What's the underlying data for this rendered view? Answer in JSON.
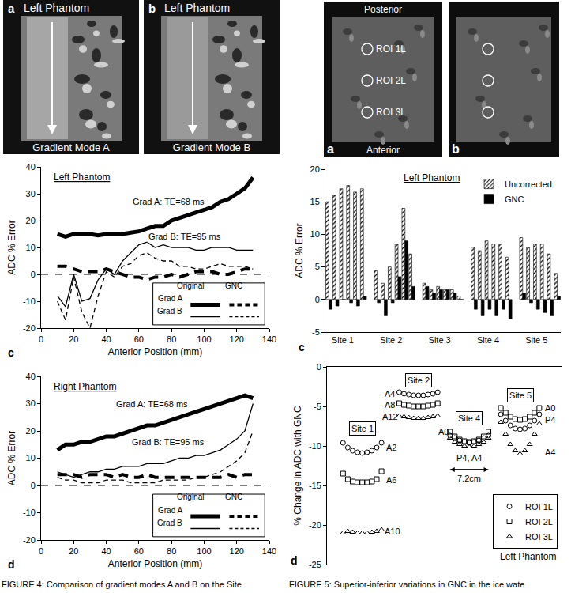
{
  "chart_data": [
    {
      "type": "line",
      "panel": "c",
      "title": "Left Phantom",
      "x_label": "Anterior Position (mm)",
      "y_label": "ADC % Error",
      "x": [
        10,
        15,
        20,
        25,
        30,
        35,
        40,
        45,
        50,
        55,
        60,
        65,
        70,
        75,
        80,
        85,
        90,
        95,
        100,
        105,
        110,
        115,
        120,
        125,
        130
      ],
      "xlim": [
        0,
        140
      ],
      "xticks": [
        0,
        20,
        40,
        60,
        80,
        100,
        120,
        140
      ],
      "ylim": [
        -20,
        40
      ],
      "yticks": [
        -20,
        -10,
        0,
        10,
        20,
        30,
        40
      ],
      "grid": false,
      "reference_y": 0,
      "legend": "bottom right",
      "legend_columns": [
        "Original",
        "GNC"
      ],
      "series": [
        {
          "name": "Grad A",
          "legend_column": "Original",
          "line_style": "thick",
          "color": "#000000",
          "values": [
            15,
            14,
            15,
            15,
            15,
            14.5,
            15,
            15,
            15,
            15.5,
            16,
            17,
            18,
            18,
            20,
            21,
            22,
            23,
            24,
            25,
            27,
            28,
            30,
            32,
            36
          ]
        },
        {
          "name": "Grad B",
          "legend_column": "Original",
          "line_style": "thin",
          "color": "#000000",
          "values": [
            -8,
            -12,
            0,
            -10,
            -9,
            -2,
            2,
            0,
            5,
            8,
            11,
            12,
            10,
            11,
            10,
            10,
            10,
            9,
            9,
            10,
            10,
            10,
            9,
            9,
            9
          ]
        },
        {
          "name": "Grad A",
          "legend_column": "GNC",
          "line_style": "thick-dashed",
          "color": "#000000",
          "values": [
            3,
            3,
            2,
            1,
            1,
            1,
            2,
            1,
            0,
            -1,
            -1,
            -2,
            -1,
            -1,
            0,
            -1,
            0,
            1,
            1,
            1,
            0,
            0,
            1,
            2,
            2
          ]
        },
        {
          "name": "Grad B",
          "legend_column": "GNC",
          "line_style": "thin-dashed",
          "color": "#000000",
          "values": [
            -10,
            -17,
            -1,
            -14,
            -20,
            -8,
            1,
            -1,
            3,
            4,
            7,
            8,
            6,
            5,
            5,
            3,
            3,
            2,
            2,
            3,
            4,
            3,
            3,
            3,
            2
          ]
        }
      ],
      "annotations": [
        {
          "text": "Grad A: TE=68 ms",
          "x": 78,
          "y": 27
        },
        {
          "text": "Grad B: TE=95 ms",
          "x": 88,
          "y": 14
        }
      ]
    },
    {
      "type": "line",
      "panel": "d",
      "title": "Right Phantom",
      "x_label": "Anterior Position (mm)",
      "y_label": "ADC % Error",
      "x": [
        10,
        15,
        20,
        25,
        30,
        35,
        40,
        45,
        50,
        55,
        60,
        65,
        70,
        75,
        80,
        85,
        90,
        95,
        100,
        105,
        110,
        115,
        120,
        125,
        130
      ],
      "xlim": [
        0,
        140
      ],
      "xticks": [
        0,
        20,
        40,
        60,
        80,
        100,
        120,
        140
      ],
      "ylim": [
        -20,
        40
      ],
      "yticks": [
        -20,
        -10,
        0,
        10,
        20,
        30,
        40
      ],
      "grid": false,
      "reference_y": 0,
      "legend": "bottom right",
      "legend_columns": [
        "Original",
        "GNC"
      ],
      "series": [
        {
          "name": "Grad A",
          "legend_column": "Original",
          "line_style": "thick",
          "color": "#000000",
          "values": [
            13,
            15,
            15,
            16,
            16,
            17,
            18,
            18,
            19,
            20,
            21,
            22,
            22,
            23,
            24,
            25,
            26,
            27,
            28,
            29,
            30,
            31,
            32,
            33,
            32
          ]
        },
        {
          "name": "Grad B",
          "legend_column": "Original",
          "line_style": "thin",
          "color": "#000000",
          "values": [
            5,
            4,
            3,
            4,
            5,
            5,
            6,
            6,
            7,
            7,
            7,
            8,
            8,
            8,
            9,
            10,
            10,
            11,
            11,
            12,
            13,
            15,
            17,
            20,
            30
          ]
        },
        {
          "name": "Grad A",
          "legend_column": "GNC",
          "line_style": "thick-dashed",
          "color": "#000000",
          "values": [
            4,
            4,
            4,
            3,
            4,
            4,
            4,
            3,
            4,
            3,
            3,
            4,
            3,
            3,
            3,
            3,
            3,
            3,
            3,
            3,
            3,
            4,
            3,
            4,
            4
          ]
        },
        {
          "name": "Grad B",
          "legend_column": "GNC",
          "line_style": "thin-dashed",
          "color": "#000000",
          "values": [
            3,
            2,
            2,
            1,
            1,
            1,
            2,
            2,
            2,
            1,
            1,
            1,
            1,
            2,
            2,
            2,
            2,
            3,
            3,
            4,
            5,
            7,
            9,
            12,
            20
          ]
        }
      ],
      "annotations": [
        {
          "text": "Grad A: TE=68 ms",
          "x": 68,
          "y": 30
        },
        {
          "text": "Grad B: TE=95 ms",
          "x": 78,
          "y": 16
        }
      ]
    },
    {
      "type": "bar",
      "panel": "c",
      "title": "Left Phantom",
      "y_label": "ADC % Error",
      "categories": [
        null,
        null,
        "Site 1",
        null,
        null,
        null,
        null,
        null,
        null,
        "Site 2",
        null,
        null,
        null,
        null,
        null,
        null,
        "Site 3",
        null,
        null,
        null,
        null,
        null,
        null,
        "Site 4",
        null,
        null,
        null,
        null,
        null,
        null,
        "Site 5",
        null,
        null,
        null
      ],
      "ylim": [
        -5,
        20
      ],
      "yticks": [
        -5,
        0,
        5,
        10,
        15,
        20
      ],
      "grid": false,
      "legend": "top right",
      "series": [
        {
          "name": "Uncorrected",
          "color": "#ffffff",
          "marker": "hatched",
          "values": [
            15,
            16,
            17,
            17.5,
            16.5,
            17,
            null,
            4.5,
            2.5,
            5,
            8.5,
            14,
            7,
            null,
            2.5,
            1.5,
            2,
            1.5,
            1.5,
            0.5,
            null,
            8,
            7.5,
            9,
            8.5,
            8.5,
            6.5,
            null,
            9.5,
            8,
            8.5,
            8.5,
            7,
            4
          ]
        },
        {
          "name": "GNC",
          "color": "#000000",
          "marker": "solid",
          "values": [
            -1.5,
            -1,
            0,
            -0.5,
            -1,
            0.5,
            null,
            -0.5,
            -2.5,
            -0.5,
            3.5,
            9,
            2,
            null,
            2,
            1,
            1.5,
            1.5,
            1,
            0,
            null,
            -1.5,
            -2.5,
            -1.5,
            -2.5,
            -1.5,
            -3,
            null,
            1,
            -0.5,
            -1.5,
            -2,
            -2.5,
            0.5
          ]
        }
      ]
    },
    {
      "type": "scatter",
      "panel": "d",
      "title": "Left Phantom",
      "y_label": "% Change in ADC with GNC",
      "x": [
        3,
        3.9,
        4.8,
        5.7,
        6.6,
        7.5,
        8.4,
        9.3,
        10.2,
        13.5,
        14.4,
        15.3,
        16.2,
        17.1,
        18,
        18.9,
        19.8,
        20.7,
        23,
        23.9,
        24.8,
        25.7,
        26.6,
        27.5,
        28.4,
        29.3,
        30.2,
        32.5,
        33.4,
        34.3,
        35.2,
        36.1,
        37,
        37.9,
        38.8,
        39.7
      ],
      "xlim": [
        0,
        44
      ],
      "ylim": [
        -25,
        0
      ],
      "yticks": [
        -25,
        -20,
        -15,
        -10,
        -5,
        0
      ],
      "tick_labels": "y",
      "grid": false,
      "legend": "bottom right",
      "series": [
        {
          "name": "ROI 1L",
          "marker": "circle",
          "color": "#000000",
          "values": [
            -9.6,
            -10.2,
            -10.6,
            -10.8,
            -10.9,
            -10.8,
            -10.6,
            -10.2,
            -9.6,
            -3.2,
            -3.4,
            -3.5,
            -3.6,
            -3.6,
            -3.6,
            -3.5,
            -3.4,
            -3.2,
            -8.7,
            -9,
            -9.3,
            -9.5,
            -9.6,
            -9.5,
            -9.3,
            -9,
            -8.7,
            -6,
            -6.8,
            -7.4,
            -7.8,
            -7.9,
            -7.8,
            -7.4,
            -6.8,
            -6
          ]
        },
        {
          "name": "ROI 2L",
          "marker": "square",
          "color": "#000000",
          "values": [
            -13.5,
            -14.2,
            -14.5,
            -14.6,
            -14.6,
            -14.6,
            -14.5,
            -14.2,
            -13.2,
            -4.6,
            -4.8,
            -4.9,
            -5,
            -5,
            -5,
            -4.9,
            -4.8,
            -4.6,
            -8.2,
            -8.8,
            -9.2,
            -9.4,
            -9.5,
            -9.4,
            -9.2,
            -8.8,
            -8.2,
            -5.2,
            -5.8,
            -6.3,
            -6.6,
            -6.7,
            -6.6,
            -6.3,
            -5.8,
            -5.2
          ]
        },
        {
          "name": "ROI 3L",
          "marker": "triangle",
          "color": "#000000",
          "values": [
            -21,
            -20.8,
            -20.9,
            -21,
            -21,
            -21,
            -20.9,
            -20.8,
            -20.6,
            -6.2,
            -6.3,
            -6.4,
            -6.5,
            -6.5,
            -6.5,
            -6.4,
            -6.3,
            -6.2,
            -9,
            -9.5,
            -9.8,
            -10,
            -10.1,
            -10,
            -9.8,
            -9.5,
            -9,
            -7,
            -8.5,
            -9.8,
            -10.6,
            -11,
            -10.6,
            -9.8,
            -8.5,
            -7.2
          ]
        }
      ],
      "site_labels": [
        {
          "text": "Site 1",
          "x": 6.6,
          "y": -7.8
        },
        {
          "text": "Site 2",
          "x": 17.1,
          "y": -1.7
        },
        {
          "text": "Site 4",
          "x": 26.6,
          "y": -6.5
        },
        {
          "text": "Site 5",
          "x": 36.1,
          "y": -3.6
        }
      ],
      "annotations": [
        {
          "text": "A2",
          "x": 12,
          "y": -10.2
        },
        {
          "text": "A6",
          "x": 12,
          "y": -14.3
        },
        {
          "text": "A10",
          "x": 12.2,
          "y": -20.8
        },
        {
          "text": "A4",
          "x": 11.8,
          "y": -3.4
        },
        {
          "text": "A8",
          "x": 11.8,
          "y": -4.8
        },
        {
          "text": "A12",
          "x": 11.8,
          "y": -6.3
        },
        {
          "text": "A0",
          "x": 21.8,
          "y": -8.2
        },
        {
          "text": "P4, A4",
          "x": 26.6,
          "y": -11.5
        },
        {
          "text": "A0",
          "x": 41.7,
          "y": -5.2
        },
        {
          "text": "P4",
          "x": 41.7,
          "y": -6.7
        },
        {
          "text": "A4",
          "x": 41.7,
          "y": -10.8
        }
      ],
      "scale_bar": {
        "text": "7.2cm",
        "x": [
          23,
          30.2
        ],
        "y": -13
      }
    }
  ],
  "images": {
    "figure4": {
      "panels": [
        {
          "letter": "a",
          "title": "Left Phantom",
          "label": "Gradient Mode A"
        },
        {
          "letter": "b",
          "title": "Left Phantom",
          "label": "Gradient Mode B"
        }
      ]
    },
    "figure5": {
      "top": "Posterior",
      "bottom": "Anterior",
      "rois": [
        "ROI 1L",
        "ROI 2L",
        "ROI 3L"
      ],
      "letters": [
        "a",
        "b"
      ]
    }
  },
  "captions": [
    "FIGURE 4: Comparison of gradient modes A and B on the Site",
    "FIGURE 5: Superior-inferior variations in GNC in the ice wate"
  ]
}
